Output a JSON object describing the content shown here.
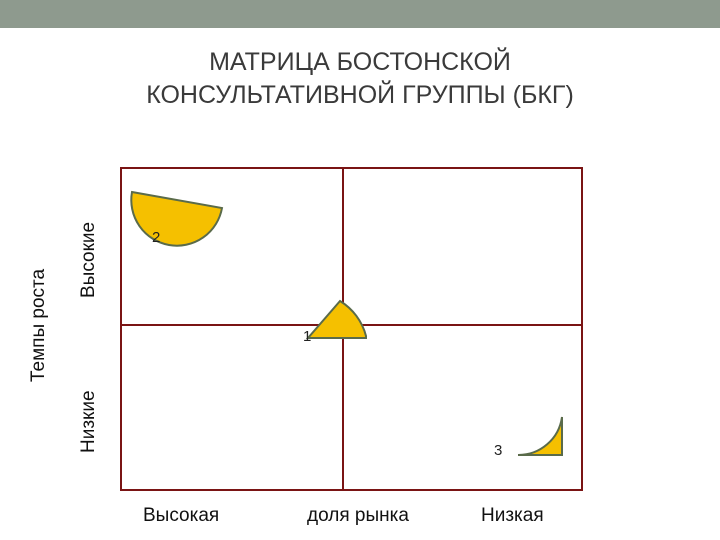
{
  "title": {
    "line1": "МАТРИЦА БОСТОНСКОЙ",
    "line2": "КОНСУЛЬТАТИВНОЙ ГРУППЫ (БКГ)"
  },
  "axes": {
    "y_title": "Темпы роста",
    "y_high": "Высокие",
    "y_low": "Низкие",
    "x_high": "Высокая",
    "x_title": "доля рынка",
    "x_low": "Низкая"
  },
  "items": [
    {
      "label": "2"
    },
    {
      "label": "1"
    },
    {
      "label": "3"
    }
  ],
  "colors": {
    "grid": "#7a1414",
    "shape_fill": "#f5c000",
    "shape_stroke": "#5a6b4a"
  }
}
